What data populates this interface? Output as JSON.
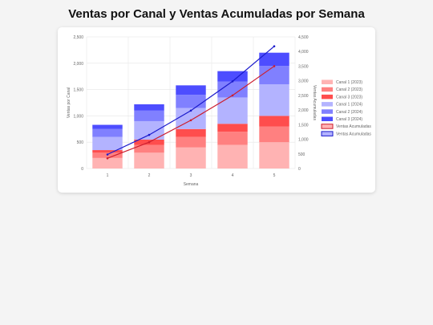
{
  "page": {
    "title": "Ventas por Canal y Ventas Acumuladas por Semana"
  },
  "chart_data": {
    "type": "bar",
    "stacked": true,
    "title": "Ventas por Canal y Ventas Acumuladas por Semana",
    "xlabel": "Semana",
    "ylabel": "Ventas por Canal",
    "y2label": "Ventas Acumuladas",
    "categories": [
      "1",
      "2",
      "3",
      "4",
      "5"
    ],
    "ylim": [
      0,
      2500
    ],
    "y2lim": [
      0,
      4500
    ],
    "yticks": [
      0,
      500,
      1000,
      1500,
      2000,
      2500
    ],
    "y2ticks": [
      0,
      500,
      1000,
      1500,
      2000,
      2500,
      3000,
      3500,
      4000,
      4500
    ],
    "grid": true,
    "legend_position": "right",
    "series": [
      {
        "name": "Canal 1 (2023)",
        "kind": "bar",
        "color": "#ffb3b3",
        "values": [
          200,
          300,
          400,
          450,
          500
        ]
      },
      {
        "name": "Canal 2 (2023)",
        "kind": "bar",
        "color": "#ff8080",
        "values": [
          100,
          150,
          200,
          250,
          300
        ]
      },
      {
        "name": "Canal 3 (2023)",
        "kind": "bar",
        "color": "#ff4d4d",
        "values": [
          50,
          100,
          150,
          150,
          200
        ]
      },
      {
        "name": "Canal 1 (2024)",
        "kind": "bar",
        "color": "#b3b3ff",
        "values": [
          250,
          350,
          400,
          500,
          600
        ]
      },
      {
        "name": "Canal 2 (2024)",
        "kind": "bar",
        "color": "#8080ff",
        "values": [
          150,
          200,
          250,
          300,
          350
        ]
      },
      {
        "name": "Canal 3 (2024)",
        "kind": "bar",
        "color": "#4d4dff",
        "values": [
          80,
          120,
          180,
          200,
          250
        ]
      },
      {
        "name": "Ventas Acumuladas",
        "kind": "line",
        "color": "#cc1f2f",
        "fill": "#ffb3b3",
        "values": [
          350,
          900,
          1650,
          2500,
          3500
        ]
      },
      {
        "name": "Ventas Acumuladas",
        "kind": "line",
        "color": "#1a1acc",
        "fill": "#b3b3ff",
        "values": [
          480,
          1150,
          1980,
          2980,
          4180
        ]
      }
    ]
  }
}
